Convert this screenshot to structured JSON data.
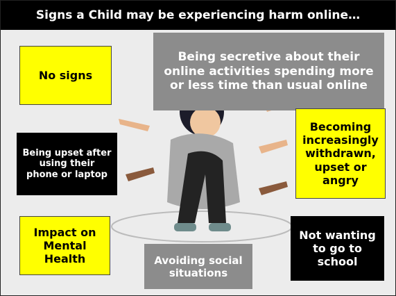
{
  "title": "Signs a Child may be experiencing harm online…",
  "signs": [
    {
      "text": "No signs"
    },
    {
      "text": "Being secretive about their online activities spending more or less time than usual online"
    },
    {
      "text": "Being upset after using their phone or laptop"
    },
    {
      "text": "Becoming increasingly withdrawn, upset or angry"
    },
    {
      "text": "Impact on Mental Health"
    },
    {
      "text": "Avoiding social situations"
    },
    {
      "text": "Not wanting to go to school"
    }
  ]
}
